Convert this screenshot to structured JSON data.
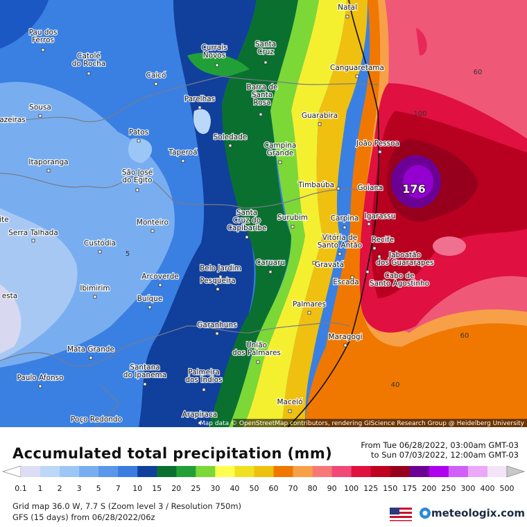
{
  "map": {
    "cities": [
      [
        "Natal"
      ],
      [
        "Pau dos",
        "Ferros"
      ],
      [
        "Catolé",
        "do Rocha"
      ],
      [
        "Currais",
        "Novos"
      ],
      [
        "Santa",
        "Cruz"
      ],
      [
        "Canguaretama"
      ],
      [
        "Caicó"
      ],
      [
        "Barra de",
        "Santa",
        "Rosa"
      ],
      [
        "Parelhas"
      ],
      [
        "Sousa"
      ],
      [
        "azeiras"
      ],
      [
        "Guarabira"
      ],
      [
        "Patos"
      ],
      [
        "Soledade"
      ],
      [
        "João Pessoa"
      ],
      [
        "Campina",
        "Grande"
      ],
      [
        "Taperoá"
      ],
      [
        "Itaporanga"
      ],
      [
        "São José",
        "do Egito"
      ],
      [
        "Timbaúba"
      ],
      [
        "Goiana"
      ],
      [
        "Santa",
        "Cruz do",
        "Capibaribe"
      ],
      [
        "Surubim"
      ],
      [
        "Carpina"
      ],
      [
        "Igarassu"
      ],
      [
        "Serra Talhada"
      ],
      [
        "Monteiro"
      ],
      [
        "ite"
      ],
      [
        "Vitória de",
        "Santo Antão"
      ],
      [
        "Recife"
      ],
      [
        "Custódia"
      ],
      [
        "Jaboatão",
        "dos Guararapes"
      ],
      [
        "Caruaru"
      ],
      [
        "Gravatá"
      ],
      [
        "Belo Jardim"
      ],
      [
        "Arcoverde"
      ],
      [
        "Pesqueira"
      ],
      [
        "Cabo de",
        "Santo Agostinho"
      ],
      [
        "Escada"
      ],
      [
        "Ibimirim"
      ],
      [
        "esta"
      ],
      [
        "Buíque"
      ],
      [
        "Palmares"
      ],
      [
        "Garanhuns"
      ],
      [
        "Maragogi"
      ],
      [
        "União",
        "dos Palmares"
      ],
      [
        "Mata Grande"
      ],
      [
        "Santana",
        "do Ipanema"
      ],
      [
        "Palmeira",
        "dos Índios"
      ],
      [
        "Paulo Afonso"
      ],
      [
        "Maceió"
      ],
      [
        "Arapiraca"
      ],
      [
        "Poço Redondo"
      ]
    ],
    "contour_labels": [
      "60",
      "100",
      "176",
      "5",
      "60",
      "40"
    ],
    "attribution": "Map data © OpenStreetMap contributors, rendering GIScience Research Group @ Heidelberg University"
  },
  "panel": {
    "title": "Accumulated total precipitation (mm)",
    "period": [
      "From Tue 06/28/2022, 03:00am GMT-03",
      "to Sun 07/03/2022, 12:00am GMT-03"
    ],
    "legend": [
      {
        "value": 0.1,
        "color": "#dcdcf4"
      },
      {
        "value": 1,
        "color": "#bcd8f8"
      },
      {
        "value": 2,
        "color": "#9cc6f6"
      },
      {
        "value": 3,
        "color": "#78aef0"
      },
      {
        "value": 5,
        "color": "#5a96ea"
      },
      {
        "value": 7,
        "color": "#3a7ce0"
      },
      {
        "value": 10,
        "color": "#10409c"
      },
      {
        "value": 15,
        "color": "#0a7030"
      },
      {
        "value": 20,
        "color": "#22a038"
      },
      {
        "value": 25,
        "color": "#7cd836"
      },
      {
        "value": 30,
        "color": "#ffff50"
      },
      {
        "value": 40,
        "color": "#f0e020"
      },
      {
        "value": 50,
        "color": "#f0c010"
      },
      {
        "value": 60,
        "color": "#f07800"
      },
      {
        "value": 70,
        "color": "#f8a048"
      },
      {
        "value": 80,
        "color": "#f87878"
      },
      {
        "value": 90,
        "color": "#f04878"
      },
      {
        "value": 100,
        "color": "#e01040"
      },
      {
        "value": 125,
        "color": "#c00020"
      },
      {
        "value": 150,
        "color": "#96001c"
      },
      {
        "value": 175,
        "color": "#6c0094"
      },
      {
        "value": 200,
        "color": "#b000f0"
      },
      {
        "value": 250,
        "color": "#d060f8"
      },
      {
        "value": 300,
        "color": "#eca8f8"
      },
      {
        "value": 400,
        "color": "#f4e4f8"
      },
      {
        "value": 500,
        "color": "#c8c8c8"
      }
    ],
    "grid_info": "Grid map 36.0 W, 7.7 S (Zoom level 3 / Resolution 750m)",
    "model_info": "GFS (15 days) from 06/28/2022/06z",
    "brand": "meteologix.com"
  }
}
